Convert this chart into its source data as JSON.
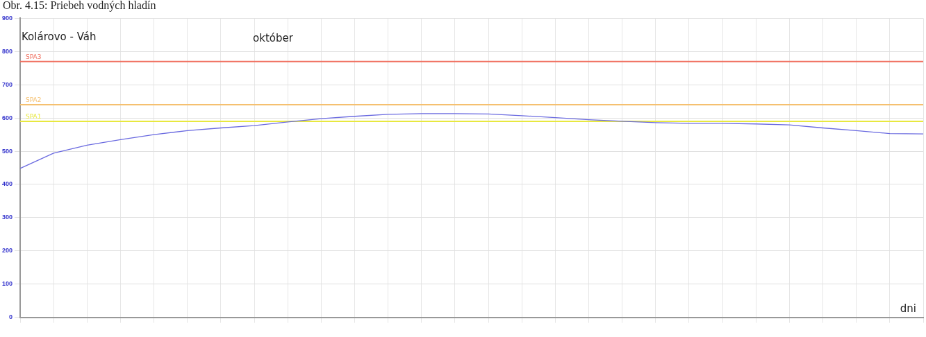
{
  "chart_data": {
    "type": "line",
    "title": "Obr. 4.15: Priebeh vodných hladín",
    "xlabel": "dni",
    "annotations": [
      "Kolárovo - Váh",
      "október"
    ],
    "categories": [
      null,
      null,
      null,
      null,
      null,
      null,
      null,
      null,
      null,
      null,
      null,
      null,
      null,
      null,
      null,
      null,
      null,
      null,
      null,
      null,
      null,
      null,
      null,
      null,
      null,
      null,
      null,
      null
    ],
    "series": [
      {
        "color": "#6a6ae0",
        "values": [
          448,
          494,
          518,
          535,
          550,
          562,
          570,
          577,
          588,
          598,
          605,
          611,
          613,
          613,
          612,
          607,
          601,
          595,
          590,
          586,
          584,
          584,
          582,
          579,
          570,
          562,
          553,
          552
        ]
      }
    ],
    "ylim": [
      0,
      900
    ],
    "yticks": [
      0,
      100,
      200,
      300,
      400,
      500,
      600,
      700,
      800,
      900
    ],
    "ref_lines": [
      {
        "axis": "y",
        "value": 770,
        "label": "SPA3",
        "color": "#f07060"
      },
      {
        "axis": "y",
        "value": 640,
        "label": "SPA2",
        "color": "#f5c070"
      },
      {
        "axis": "y",
        "value": 590,
        "label": "SPA1",
        "color": "#e8e840"
      }
    ],
    "grid": true,
    "legend": false,
    "marker": "none",
    "line_style": "solid"
  }
}
